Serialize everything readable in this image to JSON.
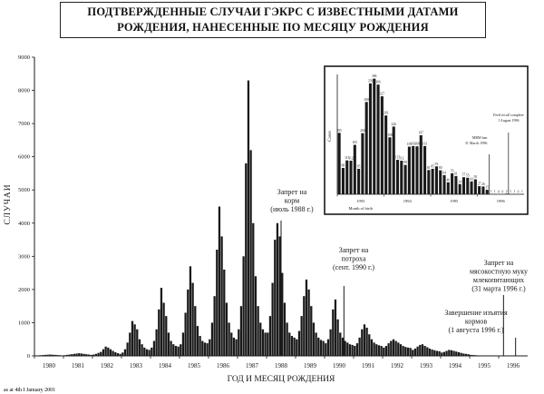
{
  "title": {
    "line1": "ПОДТВЕРЖДЕННЫЕ СЛУЧАИ ГЭКРС С ИЗВЕСТНЫМИ ДАТАМИ",
    "line2": "РОЖДЕНИЯ, НАНЕСЕННЫЕ ПО МЕСЯЦУ РОЖДЕНИЯ"
  },
  "footer_note": "as at 4th I January 2001",
  "colors": {
    "ink": "#1a1a1a",
    "background": "#ffffff"
  },
  "chart_data": [
    {
      "type": "bar",
      "ylabel": "СЛУЧАИ",
      "xlabel": "ГОД И МЕСЯЦ РОЖДЕНИЯ",
      "ylim": [
        0,
        9000
      ],
      "yticks": [
        "0",
        "1000",
        "2000",
        "3000",
        "4000",
        "5000",
        "6000",
        "7000",
        "8000",
        "9000"
      ],
      "year_ticks": [
        "1980",
        "1981",
        "1982",
        "1983",
        "1984",
        "1985",
        "1986",
        "1987",
        "1988",
        "1989",
        "1990",
        "1991",
        "1992",
        "1993",
        "1994",
        "1995",
        "1996"
      ],
      "start_year": 1980,
      "monthly_values": [
        10,
        15,
        20,
        25,
        30,
        35,
        40,
        35,
        30,
        25,
        20,
        15,
        20,
        30,
        40,
        50,
        60,
        70,
        80,
        70,
        60,
        50,
        40,
        30,
        40,
        60,
        90,
        120,
        200,
        280,
        250,
        200,
        150,
        110,
        80,
        60,
        100,
        200,
        400,
        700,
        1050,
        950,
        800,
        500,
        350,
        250,
        200,
        180,
        250,
        450,
        800,
        1400,
        2050,
        1600,
        1200,
        700,
        450,
        350,
        300,
        280,
        350,
        700,
        1300,
        2000,
        2700,
        2200,
        1500,
        900,
        600,
        450,
        400,
        380,
        500,
        1000,
        1800,
        3200,
        4500,
        3600,
        2600,
        1600,
        1000,
        700,
        550,
        500,
        800,
        1500,
        3000,
        5800,
        8300,
        6200,
        4000,
        2400,
        1500,
        1000,
        800,
        700,
        700,
        1200,
        2200,
        3500,
        4000,
        3600,
        2500,
        1600,
        1000,
        700,
        600,
        550,
        500,
        750,
        1200,
        1800,
        2300,
        2000,
        1500,
        1000,
        700,
        550,
        480,
        450,
        380,
        500,
        800,
        1400,
        1700,
        1100,
        700,
        550,
        450,
        400,
        350,
        330,
        300,
        380,
        550,
        800,
        950,
        850,
        650,
        500,
        400,
        350,
        320,
        300,
        250,
        300,
        380,
        450,
        500,
        450,
        400,
        350,
        300,
        270,
        250,
        240,
        180,
        220,
        280,
        330,
        350,
        300,
        260,
        220,
        190,
        170,
        150,
        140,
        100,
        120,
        150,
        180,
        170,
        150,
        130,
        110,
        90,
        70,
        60,
        50,
        30,
        25,
        20,
        15,
        12,
        10,
        8,
        6,
        5,
        4,
        3,
        3,
        2,
        2,
        1,
        1,
        1,
        1,
        1,
        1,
        0,
        0,
        0,
        0
      ],
      "annotations": [
        {
          "text": [
            "Запрет на",
            "корм",
            "(июль 1988 г.)"
          ]
        },
        {
          "text": [
            "Запрет на",
            "потроха",
            "(сент. 1990 г.)"
          ]
        },
        {
          "text": [
            "Запрет на",
            "мясокостную муку",
            "млекопитающих",
            "(31 марта 1996 г.)"
          ]
        },
        {
          "text": [
            "Завершение изъятия",
            "кормов",
            "(1 августа 1996 г.)"
          ]
        }
      ]
    },
    {
      "type": "bar",
      "inset": true,
      "ylabel": "Cases",
      "xlabel": "Month of birth",
      "year_ticks": [
        "1993",
        "1994",
        "1995",
        "1996"
      ],
      "values": [
        205,
        88,
        113,
        112,
        165,
        85,
        204,
        308,
        370,
        386,
        366,
        327,
        263,
        190,
        226,
        115,
        112,
        98,
        159,
        161,
        160,
        197,
        161,
        81,
        85,
        93,
        80,
        64,
        40,
        70,
        61,
        34,
        57,
        55,
        43,
        50,
        27,
        26,
        15,
        1,
        1,
        0,
        0,
        2,
        1,
        1,
        0,
        1
      ],
      "value_labels": [
        "205",
        "88",
        "113",
        "112",
        "165",
        "85",
        "204",
        "308",
        "370",
        "386",
        "366",
        "327",
        "263",
        "190",
        "226",
        "115",
        "112",
        "98",
        "159",
        "161",
        "160",
        "197",
        "161",
        "81",
        "85",
        "93",
        "80",
        "64",
        "40",
        "70",
        "61",
        "34",
        "57",
        "55",
        "43",
        "50",
        "27",
        "26",
        "15",
        "1",
        "1",
        "0",
        "0",
        "2",
        "1",
        "1",
        "0",
        "1"
      ],
      "ann1": [
        "MBM ban",
        "31 March 1996"
      ],
      "ann2": [
        "Feed recall complete",
        "1 August 1996"
      ]
    }
  ]
}
